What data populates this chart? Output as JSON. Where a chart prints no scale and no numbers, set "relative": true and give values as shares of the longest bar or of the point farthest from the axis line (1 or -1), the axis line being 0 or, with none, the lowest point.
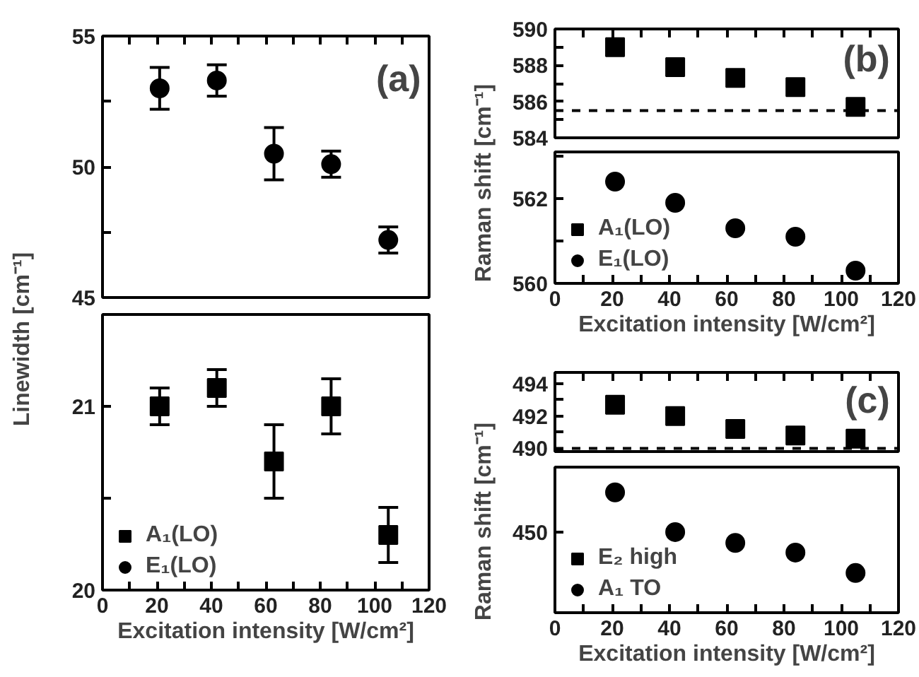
{
  "chart_data": [
    {
      "type": "scatter",
      "x": [
        21,
        42,
        63,
        84,
        105
      ],
      "xlim": [
        0,
        120
      ],
      "ylim": [
        45,
        55
      ],
      "tick_labels": "y",
      "ylabel": "Linewidth [cm⁻¹]",
      "annotations": [
        "(a)"
      ],
      "legend": "bottom left",
      "xticks": [
        {
          "value": 0,
          "label": null
        },
        {
          "value": 10,
          "label": null
        },
        {
          "value": 20,
          "label": null
        },
        {
          "value": 30,
          "label": null
        },
        {
          "value": 40,
          "label": null
        },
        {
          "value": 50,
          "label": null
        },
        {
          "value": 60,
          "label": null
        },
        {
          "value": 70,
          "label": null
        },
        {
          "value": 80,
          "label": null
        },
        {
          "value": 90,
          "label": null
        },
        {
          "value": 100,
          "label": null
        },
        {
          "value": 110,
          "label": null
        },
        {
          "value": 120,
          "label": null
        }
      ],
      "yticks": [
        45,
        {
          "value": 47.5,
          "label": null
        },
        50,
        {
          "value": 52.5,
          "label": null
        },
        55
      ],
      "series": [
        {
          "name": "E₁(LO)",
          "color": "#000000",
          "marker": "circle",
          "values": [
            53.0,
            53.3,
            50.5,
            50.1,
            47.2
          ],
          "errors": [
            0.8,
            0.6,
            1.0,
            0.5,
            0.5
          ]
        }
      ]
    },
    {
      "type": "scatter",
      "x": [
        21,
        42,
        63,
        84,
        105
      ],
      "xlim": [
        0,
        120
      ],
      "ylim": [
        20,
        21.5
      ],
      "xlabel": "Excitation intensity [W/cm²]",
      "legend": "bottom left",
      "xticks": [
        0,
        {
          "value": 10,
          "label": null
        },
        20,
        {
          "value": 30,
          "label": null
        },
        40,
        {
          "value": 50,
          "label": null
        },
        60,
        {
          "value": 70,
          "label": null
        },
        80,
        {
          "value": 90,
          "label": null
        },
        100,
        {
          "value": 110,
          "label": null
        },
        120
      ],
      "yticks": [
        20,
        {
          "value": 20.5,
          "label": null
        },
        21
      ],
      "series": [
        {
          "name": "A₁(LO)",
          "color": "#000000",
          "marker": "square",
          "values": [
            21.0,
            21.1,
            20.7,
            21.0,
            20.3
          ],
          "errors": [
            0.1,
            0.1,
            0.2,
            0.15,
            0.15
          ]
        }
      ]
    },
    {
      "type": "scatter",
      "x": [
        21,
        42,
        63,
        84,
        105
      ],
      "xlim": [
        0,
        120
      ],
      "ylim": [
        584,
        590
      ],
      "tick_labels": "y",
      "ylabel": "Raman shift [cm⁻¹]",
      "annotations": [
        "(b)"
      ],
      "legend": "bottom left",
      "xticks": [
        {
          "value": 0,
          "label": null
        },
        {
          "value": 10,
          "label": null
        },
        {
          "value": 20,
          "label": null
        },
        {
          "value": 30,
          "label": null
        },
        {
          "value": 40,
          "label": null
        },
        {
          "value": 50,
          "label": null
        },
        {
          "value": 60,
          "label": null
        },
        {
          "value": 70,
          "label": null
        },
        {
          "value": 80,
          "label": null
        },
        {
          "value": 90,
          "label": null
        },
        {
          "value": 100,
          "label": null
        },
        {
          "value": 110,
          "label": null
        },
        {
          "value": 120,
          "label": null
        }
      ],
      "yticks": [
        584,
        {
          "value": 585,
          "label": null
        },
        586,
        {
          "value": 587,
          "label": null
        },
        588,
        {
          "value": 589,
          "label": null
        },
        590
      ],
      "ref_lines": [
        {
          "axis": "y",
          "value": 585.5,
          "color": "#000000",
          "line_style": "dashed"
        }
      ],
      "series": [
        {
          "name": "A₁(LO)",
          "color": "#000000",
          "marker": "square",
          "values": [
            589.0,
            587.9,
            587.3,
            586.8,
            585.7
          ]
        }
      ]
    },
    {
      "type": "scatter",
      "x": [
        21,
        42,
        63,
        84,
        105
      ],
      "xlim": [
        0,
        120
      ],
      "ylim": [
        560,
        563.1
      ],
      "xlabel": "Excitation intensity [W/cm²]",
      "legend": "bottom left",
      "xticks": [
        0,
        {
          "value": 10,
          "label": null
        },
        20,
        {
          "value": 30,
          "label": null
        },
        40,
        {
          "value": 50,
          "label": null
        },
        60,
        {
          "value": 70,
          "label": null
        },
        80,
        {
          "value": 90,
          "label": null
        },
        100,
        {
          "value": 110,
          "label": null
        },
        120
      ],
      "yticks": [
        560,
        {
          "value": 561,
          "label": null
        },
        562,
        {
          "value": 563,
          "label": null
        }
      ],
      "series": [
        {
          "name": "E₁(LO)",
          "color": "#000000",
          "marker": "circle",
          "values": [
            562.4,
            561.9,
            561.3,
            561.1,
            560.3
          ]
        }
      ]
    },
    {
      "type": "scatter",
      "x": [
        21,
        42,
        63,
        84,
        105
      ],
      "xlim": [
        0,
        120
      ],
      "ylim": [
        489.8,
        494.7
      ],
      "tick_labels": "y",
      "ylabel": "Raman shift [cm⁻¹]",
      "annotations": [
        "(c)"
      ],
      "legend": "bottom left",
      "xticks": [
        {
          "value": 0,
          "label": null
        },
        {
          "value": 10,
          "label": null
        },
        {
          "value": 20,
          "label": null
        },
        {
          "value": 30,
          "label": null
        },
        {
          "value": 40,
          "label": null
        },
        {
          "value": 50,
          "label": null
        },
        {
          "value": 60,
          "label": null
        },
        {
          "value": 70,
          "label": null
        },
        {
          "value": 80,
          "label": null
        },
        {
          "value": 90,
          "label": null
        },
        {
          "value": 100,
          "label": null
        },
        {
          "value": 110,
          "label": null
        },
        {
          "value": 120,
          "label": null
        }
      ],
      "yticks": [
        490,
        {
          "value": 491,
          "label": null
        },
        492,
        {
          "value": 493,
          "label": null
        },
        494
      ],
      "ref_lines": [
        {
          "axis": "y",
          "value": 490,
          "color": "#000000",
          "line_style": "dashed"
        }
      ],
      "series": [
        {
          "name": "E₂ high",
          "color": "#000000",
          "marker": "square",
          "values": [
            492.7,
            492.0,
            491.2,
            490.8,
            490.6
          ]
        }
      ]
    },
    {
      "type": "scatter",
      "relative": true,
      "x": [
        21,
        42,
        63,
        84,
        105
      ],
      "xlim": [
        0,
        120
      ],
      "xlabel": "Excitation intensity [W/cm²]",
      "legend": "bottom left",
      "xticks": [
        0,
        {
          "value": 10,
          "label": null
        },
        20,
        {
          "value": 30,
          "label": null
        },
        40,
        {
          "value": 50,
          "label": null
        },
        60,
        {
          "value": 70,
          "label": null
        },
        80,
        {
          "value": 90,
          "label": null
        },
        100,
        {
          "value": 110,
          "label": null
        },
        120
      ],
      "annotations": [
        "450"
      ],
      "series": [
        {
          "name": "A₁ TO",
          "color": "#000000",
          "marker": "circle",
          "values": [
            1,
            0.67,
            0.58,
            0.5,
            0.33
          ]
        }
      ]
    }
  ]
}
